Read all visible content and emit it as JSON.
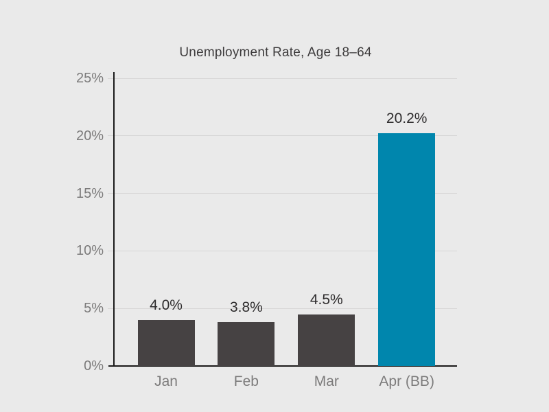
{
  "chart_data": {
    "type": "bar",
    "title": "Unemployment Rate, Age 18–64",
    "categories": [
      "Jan",
      "Feb",
      "Mar",
      "Apr (BB)"
    ],
    "values": [
      4.0,
      3.8,
      4.5,
      20.2
    ],
    "value_labels": [
      "4.0%",
      "3.8%",
      "4.5%",
      "20.2%"
    ],
    "bar_colors": [
      "#464243",
      "#464243",
      "#464243",
      "#0086ad"
    ],
    "xlabel": "",
    "ylabel": "",
    "ylim": [
      0,
      25
    ],
    "yticks": [
      {
        "value": 0,
        "label": "0%"
      },
      {
        "value": 5,
        "label": "5%"
      },
      {
        "value": 10,
        "label": "10%"
      },
      {
        "value": 15,
        "label": "15%"
      },
      {
        "value": 20,
        "label": "20%"
      },
      {
        "value": 25,
        "label": "25%"
      }
    ],
    "grid": true,
    "legend": "none"
  },
  "colors": {
    "background": "#eaeaea",
    "bar_default": "#464243",
    "bar_highlight": "#0086ad",
    "gridline": "#d6d5d5",
    "axis": "#1b1a1a",
    "tick_label": "#7c7b7b",
    "value_label": "#2e2c2d",
    "title": "#3d3b3c"
  }
}
